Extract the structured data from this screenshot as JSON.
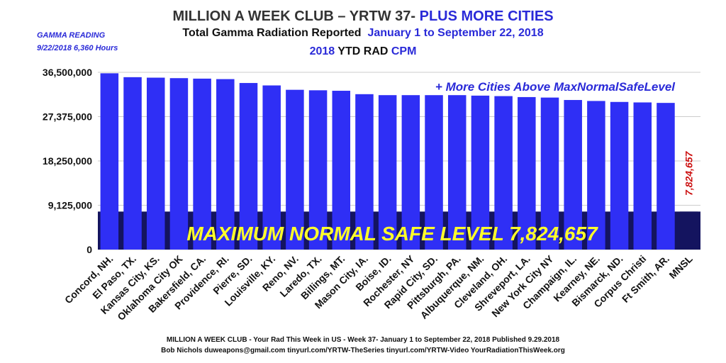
{
  "title_line1_part1": "MILLION A WEEK CLUB – YRTW 37-",
  "title_line1_part2": "PLUS MORE CITIES",
  "title_line2_part1": "Total Gamma Radiation Reported",
  "title_line2_part2": "January 1 to September 22, 2018",
  "title_line3_part1": "2018",
  "title_line3_part2": "YTD RAD",
  "title_line3_part3": "CPM",
  "gamma_reading_label": "GAMMA READING",
  "gamma_reading_value": "9/22/2018  6,360 Hours",
  "annotation_more_cities": "+ More Cities Above MaxNormalSafeLevel",
  "band_label": "MAXIMUM NORMAL SAFE LEVEL 7,824,657",
  "footer_line1": "MILLION A WEEK CLUB - Your Rad This Week in US - Week 37- January 1 to September 22, 2018   Published 9.29.2018",
  "footer_line2": "Bob Nichols  duweapons@gmail.com tinyurl.com/YRTW-TheSeries  tinyurl.com/YRTW-Video  YourRadiationThisWeek.org",
  "colors": {
    "bar": "#2f2ff5",
    "bar_mnsl": "#14145f",
    "band": "#14145f",
    "band_text": "#ffff2a",
    "grid": "#cccccc",
    "mnsl_label": "#cc1111",
    "title_accent": "#2a2ad8"
  },
  "chart_data": {
    "type": "bar",
    "categories": [
      "Concord, NH.",
      "El Paso, TX.",
      "Kansas City, KS.",
      "Oklahoma City OK",
      "Bakersfield, CA.",
      "Providence, RI.",
      "Pierre, SD.",
      "Louisville, KY.",
      "Reno, NV.",
      "Laredo, TX.",
      "Billings, MT.",
      "Mason City, IA.",
      "Boise, ID.",
      "Rochester, NY",
      "Rapid City, SD.",
      "Pittsburgh, PA.",
      "Albuquerque, NM.",
      "Cleveland, OH.",
      "Shreveport, LA.",
      "New York City NY",
      "Champaign, IL.",
      "Kearney, NE.",
      "Bismarck, ND.",
      "Corpus Christi",
      "Ft Smith, AR.",
      "MNSL"
    ],
    "values": [
      36300000,
      35500000,
      35400000,
      35300000,
      35200000,
      35100000,
      34300000,
      33800000,
      32900000,
      32800000,
      32700000,
      32000000,
      31800000,
      31800000,
      31800000,
      31800000,
      31700000,
      31600000,
      31400000,
      31300000,
      30800000,
      30600000,
      30400000,
      30300000,
      30200000,
      7824657
    ],
    "mnsl_value_label": "7,824,657",
    "yticks": [
      0,
      9125000,
      18250000,
      27375000,
      36500000
    ],
    "ytick_labels": [
      "0",
      "9,125,000",
      "18,250,000",
      "27,375,000",
      "36,500,000"
    ],
    "ylim": [
      0,
      36500000
    ],
    "band_value": 7824657,
    "grid": true
  }
}
